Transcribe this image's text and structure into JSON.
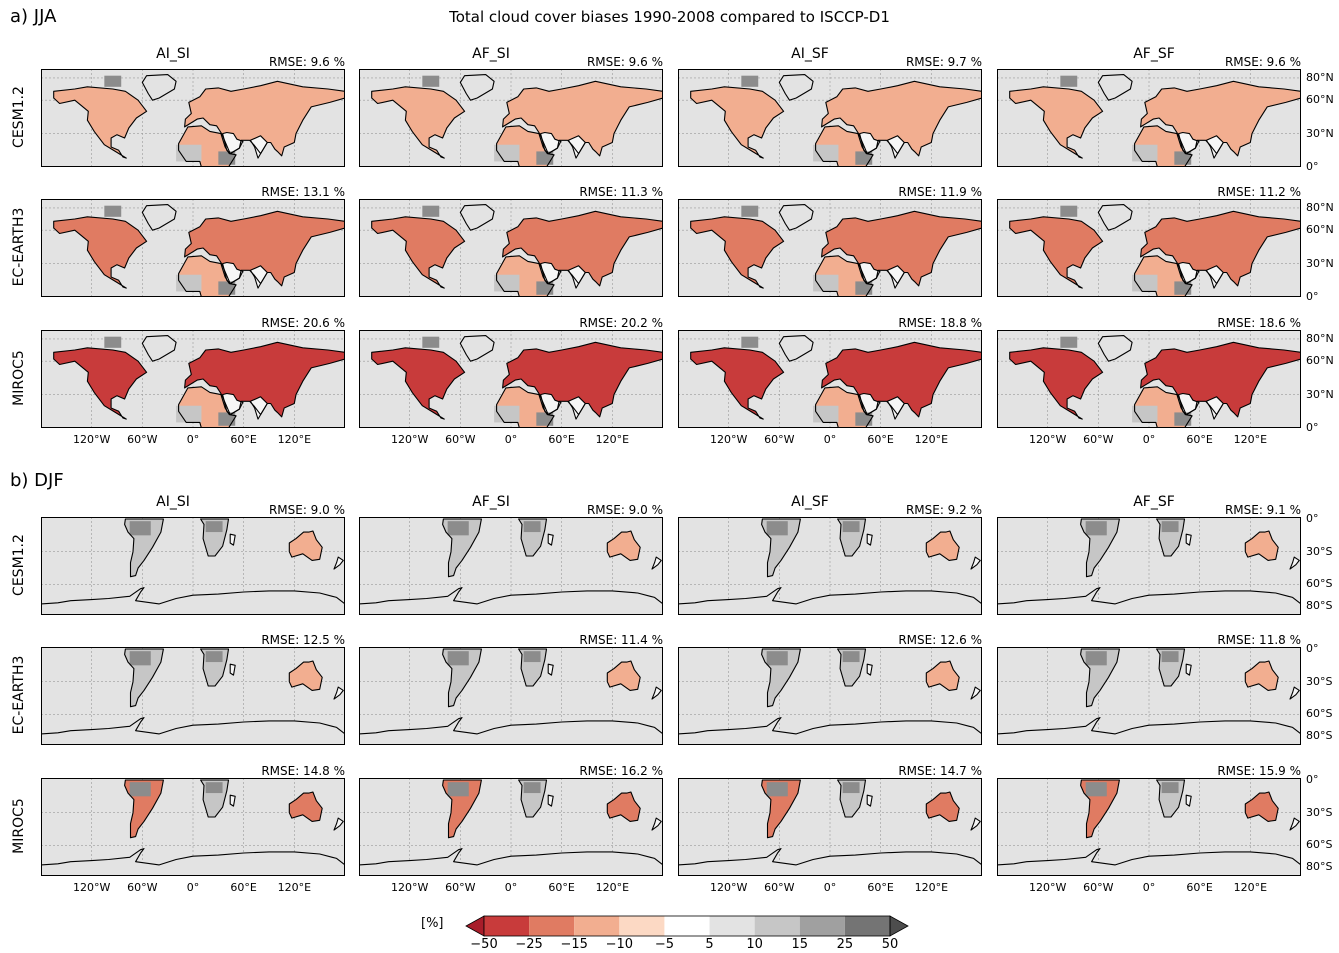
{
  "title": "Total cloud cover biases 1990-2008 compared to ISCCP-D1",
  "sections": [
    {
      "label": "a) JJA",
      "hemisphere": "north",
      "lat_ticks": [
        "80°N",
        "60°N",
        "30°N",
        "0°"
      ],
      "rows": [
        {
          "model": "CESM1.2",
          "rmse": [
            "RMSE: 9.6 %",
            "RMSE: 9.6 %",
            "RMSE: 9.7 %",
            "RMSE: 9.6 %"
          ]
        },
        {
          "model": "EC-EARTH3",
          "rmse": [
            "RMSE: 13.1 %",
            "RMSE: 11.3 %",
            "RMSE: 11.9 %",
            "RMSE: 11.2 %"
          ]
        },
        {
          "model": "MIROC5",
          "rmse": [
            "RMSE: 20.6 %",
            "RMSE: 20.2 %",
            "RMSE: 18.8 %",
            "RMSE: 18.6 %"
          ]
        }
      ]
    },
    {
      "label": "b) DJF",
      "hemisphere": "south",
      "lat_ticks": [
        "0°",
        "30°S",
        "60°S",
        "80°S"
      ],
      "rows": [
        {
          "model": "CESM1.2",
          "rmse": [
            "RMSE: 9.0 %",
            "RMSE: 9.0 %",
            "RMSE: 9.2 %",
            "RMSE: 9.1 %"
          ]
        },
        {
          "model": "EC-EARTH3",
          "rmse": [
            "RMSE: 12.5 %",
            "RMSE: 11.4 %",
            "RMSE: 12.6 %",
            "RMSE: 11.8 %"
          ]
        },
        {
          "model": "MIROC5",
          "rmse": [
            "RMSE: 14.8 %",
            "RMSE: 16.2 %",
            "RMSE: 14.7 %",
            "RMSE: 15.9 %"
          ]
        }
      ]
    }
  ],
  "columns": [
    "AI_SI",
    "AF_SI",
    "AI_SF",
    "AF_SF"
  ],
  "lon_ticks": [
    "120°W",
    "60°W",
    "0°",
    "60°E",
    "120°E"
  ],
  "colorbar": {
    "unit": "[%]",
    "ticks": [
      "−50",
      "−25",
      "−15",
      "−10",
      "−5",
      "5",
      "10",
      "15",
      "25",
      "50"
    ],
    "colors": [
      "#c83b3b",
      "#e07b62",
      "#f2ae90",
      "#fcd9c4",
      "#ffffff",
      "#e3e3e3",
      "#c6c6c6",
      "#a0a0a0",
      "#747474"
    ]
  },
  "colors": {
    "ocean": "#e3e3e3",
    "land_neutral": "#f6f6f6",
    "bias_weak": "#f2ae90",
    "bias_mid": "#e07b62",
    "bias_strong": "#c83b3b",
    "positive_weak": "#c6c6c6",
    "positive_strong": "#8c8c8c"
  }
}
